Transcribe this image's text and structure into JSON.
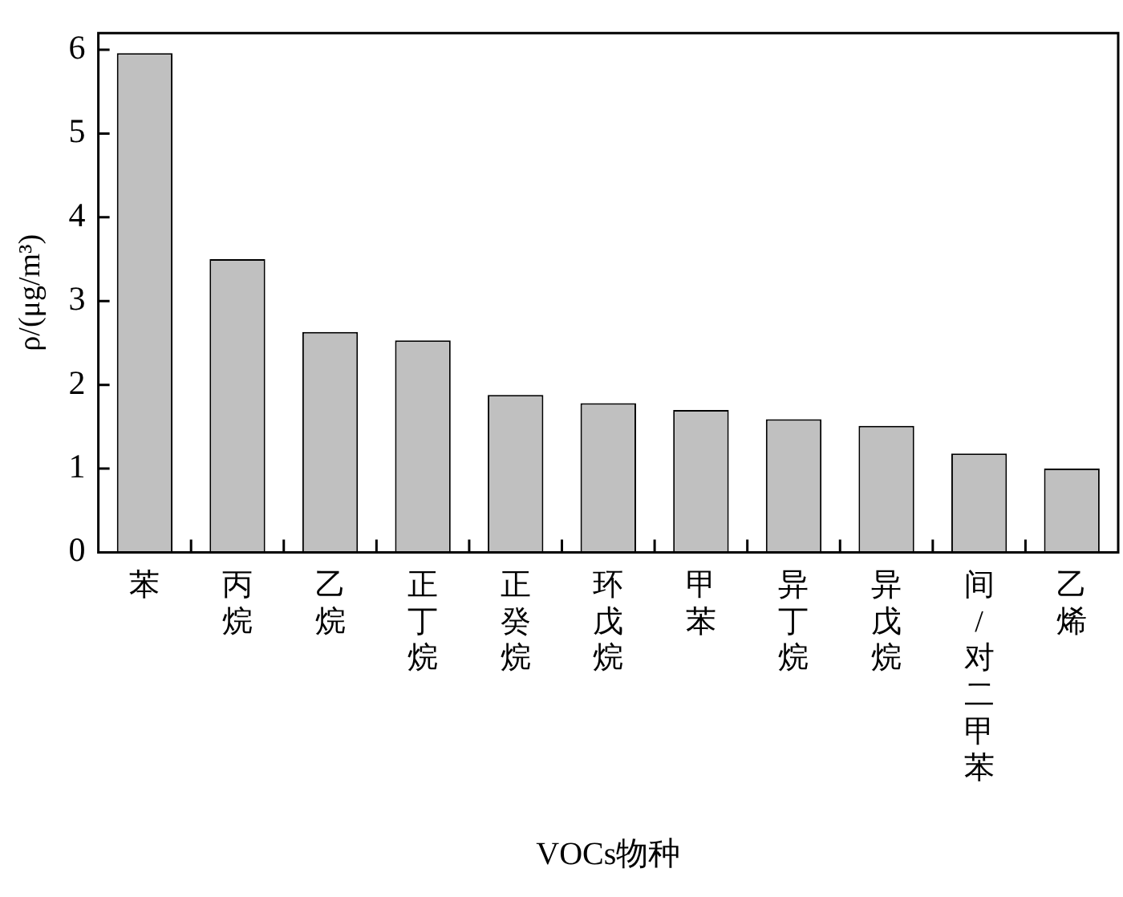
{
  "chart_data": {
    "type": "bar",
    "xlabel": "VOCs物种",
    "ylabel": "ρ/(μg/m³)",
    "categories": [
      "苯",
      "丙烷",
      "乙烷",
      "正丁烷",
      "正癸烷",
      "环戊烷",
      "甲苯",
      "异丁烷",
      "异戊烷",
      "间/对二甲苯",
      "乙烯"
    ],
    "values": [
      5.96,
      3.5,
      2.63,
      2.53,
      1.88,
      1.78,
      1.7,
      1.59,
      1.51,
      1.18,
      1.0
    ],
    "color": "#c0c0c0",
    "ylim": [
      0,
      6.2
    ],
    "yticks": [
      0,
      1,
      2,
      3,
      4,
      5,
      6
    ],
    "grid": false,
    "legend": false
  }
}
